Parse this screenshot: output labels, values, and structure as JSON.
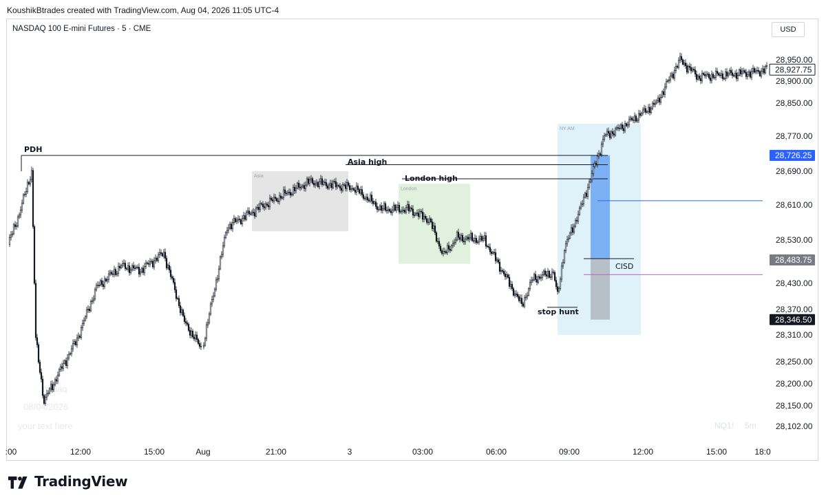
{
  "header": {
    "credit": "KoushikBtrades created with TradingView.com, Aug 04, 2026 11:05 UTC-4"
  },
  "symbol_line": "NASDAQ 100 E-mini Futures · 5 · CME",
  "currency_button": "USD",
  "brand": {
    "name": "TradingView",
    "logo_icon": "tradingview-logo-icon"
  },
  "watermarks": {
    "symbol_text": "NQ1!",
    "timeframe_text": "5m",
    "ticker_ghost": "nsdaq",
    "date_ghost": "08/04/2026",
    "note_ghost": "your text here"
  },
  "colors": {
    "up": "#131722",
    "down": "#131722",
    "asia_box": "#dcdcdc",
    "london_box": "#d6ecd2",
    "ny_box": "#d4eef8",
    "fvg_blue": "#5b9bf0",
    "fvg_grey": "#b0b7bd",
    "price_label_blue": "#2962ff",
    "price_label_grey": "#787b86",
    "price_label_black": "#131722",
    "blue_line": "#2962ff",
    "magenta_line": "#c060c0"
  },
  "chart_data": {
    "type": "candlestick",
    "title": "NASDAQ 100 E-mini Futures · 5 · CME",
    "ylim": [
      28080,
      29000
    ],
    "y_ticks": [
      "28,950.00",
      "28,900.00",
      "28,850.00",
      "28,770.00",
      "28,690.00",
      "28,610.00",
      "28,530.00",
      "28,430.00",
      "28,370.00",
      "28,310.00",
      "28,250.00",
      "28,200.00",
      "28,150.00",
      "28,102.00"
    ],
    "x_ticks": [
      ":00",
      "12:00",
      "15:00",
      "Aug",
      "21:00",
      "3",
      "03:00",
      "06:00",
      "09:00",
      "12:00",
      "15:00",
      "18:0"
    ],
    "price_labels": [
      {
        "value": "28,927.75",
        "style": "outline"
      },
      {
        "value": "28,726.25",
        "style": "blue"
      },
      {
        "value": "28,483.75",
        "style": "grey"
      },
      {
        "value": "28,346.50",
        "style": "black"
      }
    ],
    "levels": [
      {
        "name": "PDH",
        "price": 28726
      },
      {
        "name": "Asia high",
        "price": 28705
      },
      {
        "name": "London high",
        "price": 28672
      },
      {
        "name": "CISD",
        "price": 28487
      },
      {
        "name": "stop hunt",
        "price": 28375
      }
    ],
    "sessions": [
      {
        "name": "Asia",
        "from": "~20:00",
        "to": "~01:00",
        "high": 28690,
        "low": 28550
      },
      {
        "name": "London",
        "from": "~02:00",
        "to": "~05:00",
        "high": 28660,
        "low": 28475
      },
      {
        "name": "NY AM",
        "from": "~08:30",
        "to": "~11:00",
        "high": 28800,
        "low": 28310
      }
    ],
    "annotations": [
      "PDH",
      "Asia high",
      "London high",
      "CISD",
      "stop hunt",
      "Asia",
      "London",
      "NY AM"
    ],
    "series": [
      {
        "name": "",
        "anchors": [
          [
            0,
            28520
          ],
          [
            8,
            28590
          ],
          [
            17,
            28690
          ],
          [
            20,
            28300
          ],
          [
            26,
            28160
          ],
          [
            36,
            28220
          ],
          [
            50,
            28300
          ],
          [
            64,
            28420
          ],
          [
            82,
            28470
          ],
          [
            96,
            28460
          ],
          [
            113,
            28500
          ],
          [
            128,
            28340
          ],
          [
            140,
            28280
          ],
          [
            158,
            28560
          ],
          [
            185,
            28610
          ],
          [
            218,
            28665
          ],
          [
            250,
            28650
          ],
          [
            270,
            28600
          ],
          [
            290,
            28600
          ],
          [
            305,
            28575
          ],
          [
            315,
            28495
          ],
          [
            325,
            28535
          ],
          [
            345,
            28530
          ],
          [
            372,
            28380
          ],
          [
            380,
            28440
          ],
          [
            395,
            28455
          ],
          [
            398,
            28400
          ],
          [
            403,
            28510
          ],
          [
            415,
            28605
          ],
          [
            432,
            28770
          ],
          [
            444,
            28790
          ],
          [
            470,
            28850
          ],
          [
            487,
            28950
          ],
          [
            500,
            28910
          ],
          [
            540,
            28920
          ],
          [
            555,
            28932
          ]
        ]
      }
    ]
  }
}
